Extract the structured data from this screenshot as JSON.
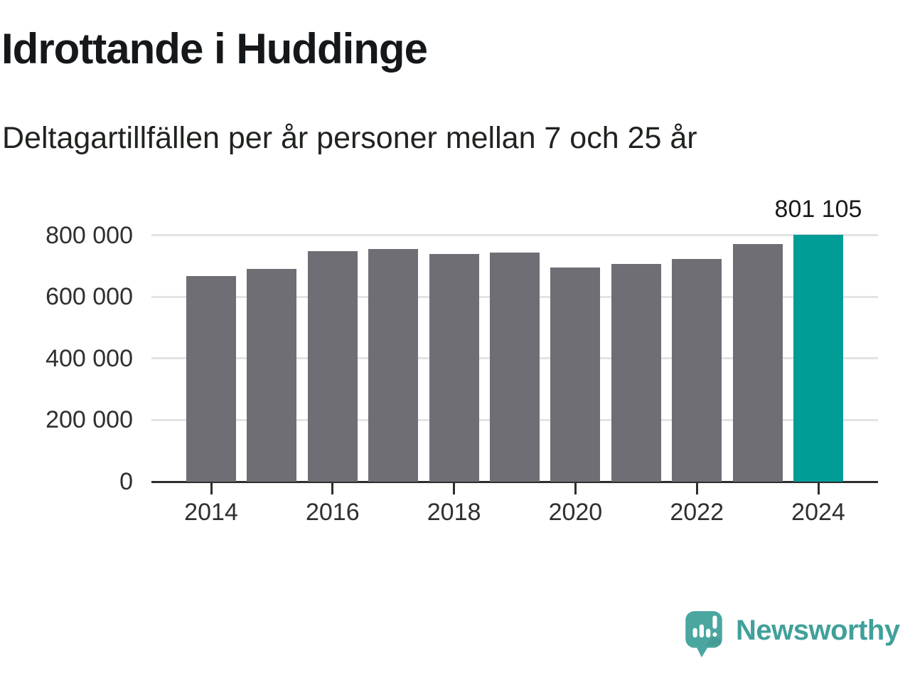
{
  "header": {
    "title": "Idrottande i Huddinge",
    "subtitle": "Deltagartillfällen per år personer mellan 7 och 25 år"
  },
  "chart_data": {
    "type": "bar",
    "title": "Idrottande i Huddinge",
    "subtitle": "Deltagartillfällen per år personer mellan 7 och 25 år",
    "categories": [
      "2014",
      "2015",
      "2016",
      "2017",
      "2018",
      "2019",
      "2020",
      "2021",
      "2022",
      "2023",
      "2024"
    ],
    "values": [
      667000,
      690000,
      747000,
      755000,
      739000,
      743000,
      695000,
      706000,
      722000,
      770000,
      801105
    ],
    "highlight_index": 10,
    "annotation": {
      "text": "801 105",
      "category": "2024"
    },
    "yticks": [
      {
        "value": 0,
        "label": "0"
      },
      {
        "value": 200000,
        "label": "200 000"
      },
      {
        "value": 400000,
        "label": "400 000"
      },
      {
        "value": 600000,
        "label": "600 000"
      },
      {
        "value": 800000,
        "label": "800 000"
      }
    ],
    "xtick_labels": [
      "2014",
      "2016",
      "2018",
      "2020",
      "2022",
      "2024"
    ],
    "ylim": [
      0,
      800000
    ],
    "grid": true,
    "legend": false,
    "bar_color": "#6f6e74",
    "highlight_color": "#009c96",
    "grid_color": "#e3e3e3",
    "axis_color": "#2e2e2e"
  },
  "footer": {
    "brand": "Newsworthy",
    "logo_icon": "newsworthy-speech-bubble-chart-icon",
    "brand_color": "#41a09b",
    "logo_bubble_color": "#4ba6a0"
  }
}
